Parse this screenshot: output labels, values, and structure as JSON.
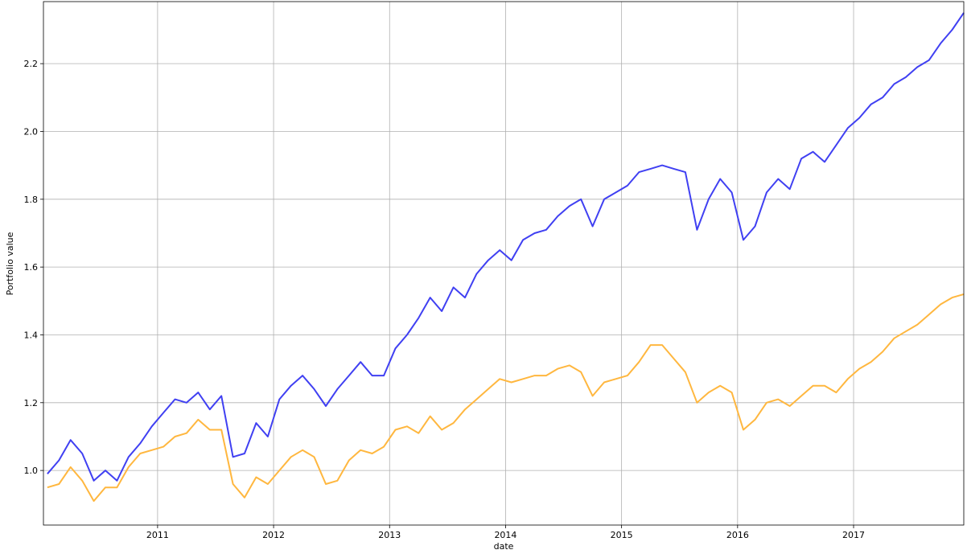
{
  "chart_data": {
    "type": "line",
    "x_label": "date",
    "y_label": "Portfolio value",
    "x": [
      2010.05,
      2010.15,
      2010.25,
      2010.35,
      2010.45,
      2010.55,
      2010.65,
      2010.75,
      2010.85,
      2010.95,
      2011.05,
      2011.15,
      2011.25,
      2011.35,
      2011.45,
      2011.55,
      2011.65,
      2011.75,
      2011.85,
      2011.95,
      2012.05,
      2012.15,
      2012.25,
      2012.35,
      2012.45,
      2012.55,
      2012.65,
      2012.75,
      2012.85,
      2012.95,
      2013.05,
      2013.15,
      2013.25,
      2013.35,
      2013.45,
      2013.55,
      2013.65,
      2013.75,
      2013.85,
      2013.95,
      2014.05,
      2014.15,
      2014.25,
      2014.35,
      2014.45,
      2014.55,
      2014.65,
      2014.75,
      2014.85,
      2014.95,
      2015.05,
      2015.15,
      2015.25,
      2015.35,
      2015.45,
      2015.55,
      2015.65,
      2015.75,
      2015.85,
      2015.95,
      2016.05,
      2016.15,
      2016.25,
      2016.35,
      2016.45,
      2016.55,
      2016.65,
      2016.75,
      2016.85,
      2016.95,
      2017.05,
      2017.15,
      2017.25,
      2017.35,
      2017.45,
      2017.55,
      2017.65,
      2017.75,
      2017.85,
      2017.95
    ],
    "series": [
      {
        "color": "#4040f2",
        "values": [
          0.99,
          1.03,
          1.09,
          1.05,
          0.97,
          1.0,
          0.97,
          1.04,
          1.08,
          1.13,
          1.17,
          1.21,
          1.2,
          1.23,
          1.18,
          1.22,
          1.04,
          1.05,
          1.14,
          1.1,
          1.21,
          1.25,
          1.28,
          1.24,
          1.19,
          1.24,
          1.28,
          1.32,
          1.28,
          1.28,
          1.36,
          1.4,
          1.45,
          1.51,
          1.47,
          1.54,
          1.51,
          1.58,
          1.62,
          1.65,
          1.62,
          1.68,
          1.7,
          1.71,
          1.75,
          1.78,
          1.8,
          1.72,
          1.8,
          1.82,
          1.84,
          1.88,
          1.89,
          1.9,
          1.89,
          1.88,
          1.71,
          1.8,
          1.86,
          1.82,
          1.68,
          1.72,
          1.82,
          1.86,
          1.83,
          1.92,
          1.94,
          1.91,
          1.96,
          2.01,
          2.04,
          2.08,
          2.1,
          2.14,
          2.16,
          2.19,
          2.21,
          2.26,
          2.3,
          2.35
        ]
      },
      {
        "color": "#ffb73f",
        "values": [
          0.95,
          0.96,
          1.01,
          0.97,
          0.91,
          0.95,
          0.95,
          1.01,
          1.05,
          1.06,
          1.07,
          1.1,
          1.11,
          1.15,
          1.12,
          1.12,
          0.96,
          0.92,
          0.98,
          0.96,
          1.0,
          1.04,
          1.06,
          1.04,
          0.96,
          0.97,
          1.03,
          1.06,
          1.05,
          1.07,
          1.12,
          1.13,
          1.11,
          1.16,
          1.12,
          1.14,
          1.18,
          1.21,
          1.24,
          1.27,
          1.26,
          1.27,
          1.28,
          1.28,
          1.3,
          1.31,
          1.29,
          1.22,
          1.26,
          1.27,
          1.28,
          1.32,
          1.37,
          1.37,
          1.33,
          1.29,
          1.2,
          1.23,
          1.25,
          1.23,
          1.12,
          1.15,
          1.2,
          1.21,
          1.19,
          1.22,
          1.25,
          1.25,
          1.23,
          1.27,
          1.3,
          1.32,
          1.35,
          1.39,
          1.41,
          1.43,
          1.46,
          1.49,
          1.51,
          1.52
        ]
      }
    ],
    "xlim": [
      2010.016,
      2017.95
    ],
    "xticks": [
      2011,
      2012,
      2013,
      2014,
      2015,
      2016,
      2017
    ],
    "ylim": [
      0.839,
      2.383
    ],
    "yticks": [
      {
        "value": 1.0,
        "label": "1.0"
      },
      {
        "value": 1.2,
        "label": "1.2"
      },
      {
        "value": 1.4,
        "label": "1.4"
      },
      {
        "value": 1.6,
        "label": "1.6"
      },
      {
        "value": 1.8,
        "label": "1.8"
      },
      {
        "value": 2.0,
        "label": "2.0"
      },
      {
        "value": 2.2,
        "label": "2.2"
      }
    ],
    "grid": true
  }
}
